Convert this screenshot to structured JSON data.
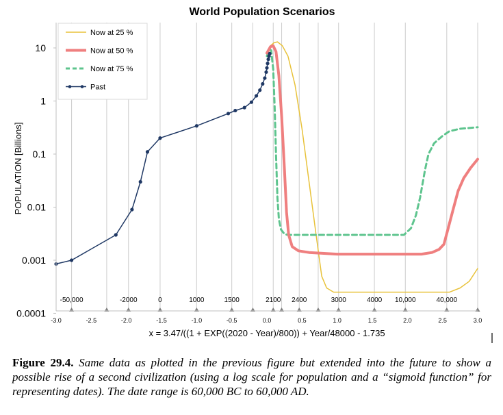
{
  "chart_data": {
    "type": "line",
    "title": "World Population Scenarios",
    "ylabel": "POPULATION [Billions]",
    "xlabel": "x = 3.47/((1 + EXP((2020 - Year)/800)) + Year/48000 - 1.735",
    "yscale": "log",
    "ylim": [
      0.0001,
      30
    ],
    "xlim": [
      -3.0,
      3.0
    ],
    "y_ticks": [
      {
        "value": 0.0001,
        "label": "0.0001"
      },
      {
        "value": 0.001,
        "label": "0.001"
      },
      {
        "value": 0.01,
        "label": "0.01"
      },
      {
        "value": 0.1,
        "label": "0.1"
      },
      {
        "value": 1,
        "label": "1"
      },
      {
        "value": 10,
        "label": "10"
      }
    ],
    "x_ticks": [
      {
        "value": -3.0,
        "label": "-3.0"
      },
      {
        "value": -2.5,
        "label": "-2.5"
      },
      {
        "value": -2.0,
        "label": "-2.0"
      },
      {
        "value": -1.5,
        "label": "-1.5"
      },
      {
        "value": -1.0,
        "label": "-1.0"
      },
      {
        "value": -0.5,
        "label": "-0.5"
      },
      {
        "value": 0.0,
        "label": "0.0"
      },
      {
        "value": 0.5,
        "label": "0.5"
      },
      {
        "value": 1.0,
        "label": "1.0"
      },
      {
        "value": 1.5,
        "label": "1.5"
      },
      {
        "value": 2.0,
        "label": "2.0"
      },
      {
        "value": 2.5,
        "label": "2.5"
      },
      {
        "value": 3.0,
        "label": "3.0"
      }
    ],
    "year_markers": [
      {
        "x": -2.78,
        "label": "-50,000"
      },
      {
        "x": -2.28,
        "label": ""
      },
      {
        "x": -1.97,
        "label": "-2000"
      },
      {
        "x": -1.52,
        "label": "0"
      },
      {
        "x": -1.0,
        "label": "1000"
      },
      {
        "x": -0.5,
        "label": "1500"
      },
      {
        "x": -0.2,
        "label": ""
      },
      {
        "x": 0.09,
        "label": "2100"
      },
      {
        "x": 0.21,
        "label": ""
      },
      {
        "x": 0.46,
        "label": "2400"
      },
      {
        "x": 0.73,
        "label": ""
      },
      {
        "x": 1.02,
        "label": "3000"
      },
      {
        "x": 1.53,
        "label": "4000"
      },
      {
        "x": 1.97,
        "label": "10,000"
      },
      {
        "x": 2.56,
        "label": "40,000"
      },
      {
        "x": 3.0,
        "label": ""
      }
    ],
    "grid": "vertical lines at year markers",
    "legend_placement": "top-left",
    "colors": {
      "now25": "#e8c23a",
      "now50": "#ef7f7f",
      "now75": "#5ec48e",
      "past": "#1f3864",
      "grid": "#cccccc"
    },
    "series": [
      {
        "name": "Now at 25 %",
        "style": "thin solid",
        "points": [
          [
            0.0,
            8.0
          ],
          [
            0.05,
            11.0
          ],
          [
            0.1,
            12.5
          ],
          [
            0.15,
            13.0
          ],
          [
            0.22,
            11.0
          ],
          [
            0.3,
            7.0
          ],
          [
            0.4,
            2.0
          ],
          [
            0.5,
            0.3
          ],
          [
            0.6,
            0.03
          ],
          [
            0.7,
            0.003
          ],
          [
            0.78,
            0.0005
          ],
          [
            0.85,
            0.0003
          ],
          [
            0.95,
            0.00025
          ],
          [
            1.2,
            0.00025
          ],
          [
            1.6,
            0.00025
          ],
          [
            2.0,
            0.00025
          ],
          [
            2.4,
            0.00025
          ],
          [
            2.6,
            0.00025
          ],
          [
            2.75,
            0.0003
          ],
          [
            2.88,
            0.0004
          ],
          [
            3.0,
            0.0007
          ]
        ]
      },
      {
        "name": "Now at 50 %",
        "style": "thick solid",
        "points": [
          [
            0.0,
            8.0
          ],
          [
            0.05,
            10.5
          ],
          [
            0.09,
            11.0
          ],
          [
            0.13,
            8.5
          ],
          [
            0.17,
            3.0
          ],
          [
            0.21,
            0.5
          ],
          [
            0.25,
            0.05
          ],
          [
            0.28,
            0.008
          ],
          [
            0.31,
            0.003
          ],
          [
            0.36,
            0.0018
          ],
          [
            0.45,
            0.0015
          ],
          [
            0.6,
            0.0014
          ],
          [
            1.0,
            0.0013
          ],
          [
            1.5,
            0.0013
          ],
          [
            2.0,
            0.0013
          ],
          [
            2.2,
            0.0013
          ],
          [
            2.35,
            0.0014
          ],
          [
            2.45,
            0.0016
          ],
          [
            2.52,
            0.002
          ],
          [
            2.58,
            0.004
          ],
          [
            2.65,
            0.009
          ],
          [
            2.72,
            0.02
          ],
          [
            2.8,
            0.035
          ],
          [
            2.9,
            0.055
          ],
          [
            3.0,
            0.08
          ]
        ]
      },
      {
        "name": "Now at 75 %",
        "style": "dashed",
        "points": [
          [
            0.0,
            7.0
          ],
          [
            0.03,
            9.5
          ],
          [
            0.06,
            9.0
          ],
          [
            0.09,
            4.0
          ],
          [
            0.11,
            0.8
          ],
          [
            0.13,
            0.1
          ],
          [
            0.15,
            0.015
          ],
          [
            0.17,
            0.006
          ],
          [
            0.2,
            0.0038
          ],
          [
            0.25,
            0.0031
          ],
          [
            0.3,
            0.003
          ],
          [
            0.5,
            0.003
          ],
          [
            1.0,
            0.003
          ],
          [
            1.5,
            0.003
          ],
          [
            1.95,
            0.003
          ],
          [
            2.05,
            0.004
          ],
          [
            2.12,
            0.007
          ],
          [
            2.18,
            0.015
          ],
          [
            2.25,
            0.05
          ],
          [
            2.3,
            0.1
          ],
          [
            2.38,
            0.16
          ],
          [
            2.5,
            0.22
          ],
          [
            2.6,
            0.27
          ],
          [
            2.75,
            0.3
          ],
          [
            3.0,
            0.32
          ]
        ]
      },
      {
        "name": "Past",
        "style": "solid with markers",
        "points": [
          [
            -3.0,
            0.00085
          ],
          [
            -2.78,
            0.001
          ],
          [
            -2.15,
            0.003
          ],
          [
            -1.92,
            0.009
          ],
          [
            -1.8,
            0.03
          ],
          [
            -1.7,
            0.11
          ],
          [
            -1.52,
            0.2
          ],
          [
            -1.0,
            0.34
          ],
          [
            -0.55,
            0.58
          ],
          [
            -0.45,
            0.66
          ],
          [
            -0.32,
            0.75
          ],
          [
            -0.22,
            0.95
          ],
          [
            -0.15,
            1.25
          ],
          [
            -0.1,
            1.6
          ],
          [
            -0.06,
            2.1
          ],
          [
            -0.03,
            2.7
          ],
          [
            -0.01,
            3.5
          ],
          [
            0.0,
            4.2
          ],
          [
            0.01,
            5.1
          ],
          [
            0.02,
            6.1
          ],
          [
            0.03,
            7.0
          ],
          [
            0.04,
            7.8
          ]
        ]
      }
    ]
  },
  "caption": {
    "figure_label": "Figure 29.4.",
    "text": "Same data as plotted in the previous figure but extended into the future to show a possible rise of a second civilization (using a log scale for population and a “sigmoid function” for representing dates). The date range is 60,000 BC to 60,000 AD."
  }
}
